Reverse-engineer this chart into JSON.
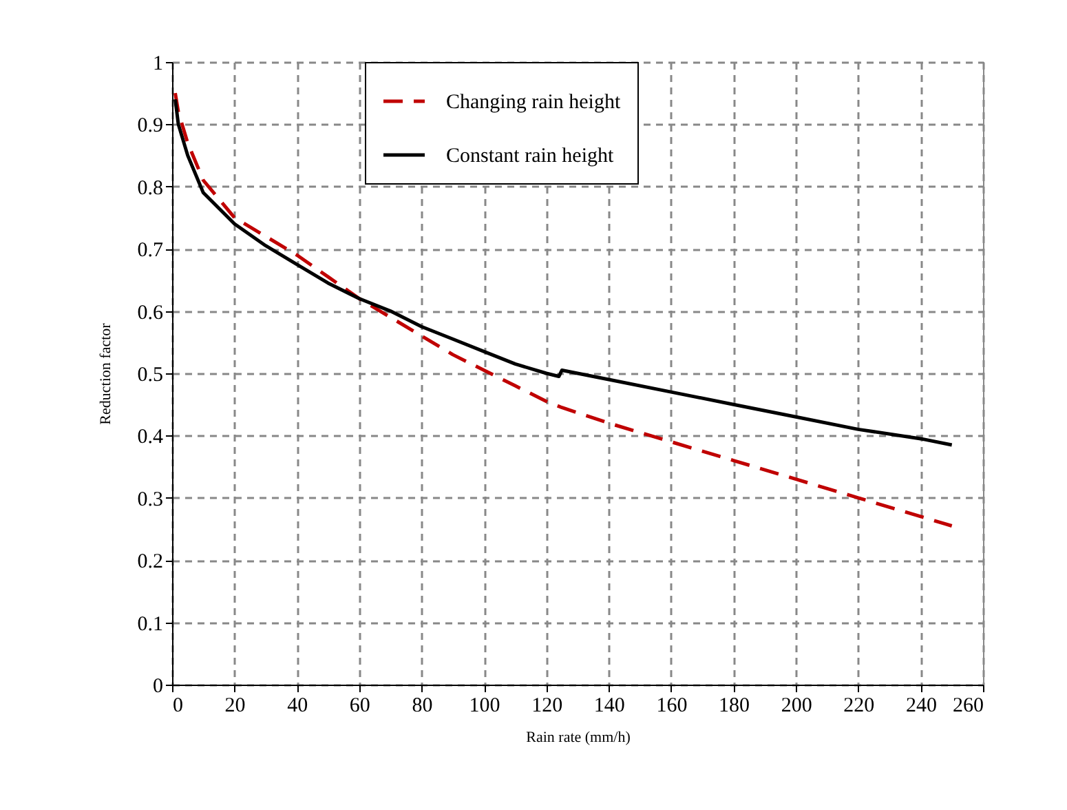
{
  "chart_data": {
    "type": "line",
    "xlabel": "Rain rate (mm/h)",
    "ylabel": "Reduction factor",
    "xlim": [
      0,
      260
    ],
    "xticks": [
      0,
      20,
      40,
      60,
      80,
      100,
      120,
      140,
      160,
      180,
      200,
      220,
      240,
      260
    ],
    "ylim": [
      0,
      1
    ],
    "yticks": [
      0,
      0.1,
      0.2,
      0.3,
      0.4,
      0.5,
      0.6,
      0.7,
      0.8,
      0.9,
      1
    ],
    "grid": true,
    "legend": "top",
    "marker": "none",
    "series": [
      {
        "name": "Changing rain height",
        "color": "#c00000",
        "line_style": "dashed",
        "x": [
          1,
          2,
          5,
          10,
          20,
          30,
          40,
          50,
          60,
          70,
          80,
          90,
          100,
          110,
          120,
          125,
          140,
          160,
          180,
          200,
          220,
          240,
          250
        ],
        "values": [
          0.95,
          0.92,
          0.87,
          0.81,
          0.75,
          0.72,
          0.69,
          0.655,
          0.62,
          0.59,
          0.56,
          0.53,
          0.505,
          0.48,
          0.455,
          0.445,
          0.42,
          0.39,
          0.36,
          0.33,
          0.3,
          0.27,
          0.255
        ]
      },
      {
        "name": "Constant rain height",
        "color": "#000000",
        "line_style": "solid",
        "x": [
          1,
          2,
          5,
          10,
          20,
          30,
          40,
          50,
          60,
          70,
          80,
          90,
          100,
          110,
          120,
          124,
          125,
          140,
          160,
          180,
          200,
          220,
          240,
          250
        ],
        "values": [
          0.94,
          0.9,
          0.85,
          0.79,
          0.74,
          0.705,
          0.675,
          0.645,
          0.62,
          0.6,
          0.575,
          0.555,
          0.535,
          0.515,
          0.5,
          0.495,
          0.505,
          0.49,
          0.47,
          0.45,
          0.43,
          0.41,
          0.395,
          0.385
        ]
      }
    ]
  }
}
